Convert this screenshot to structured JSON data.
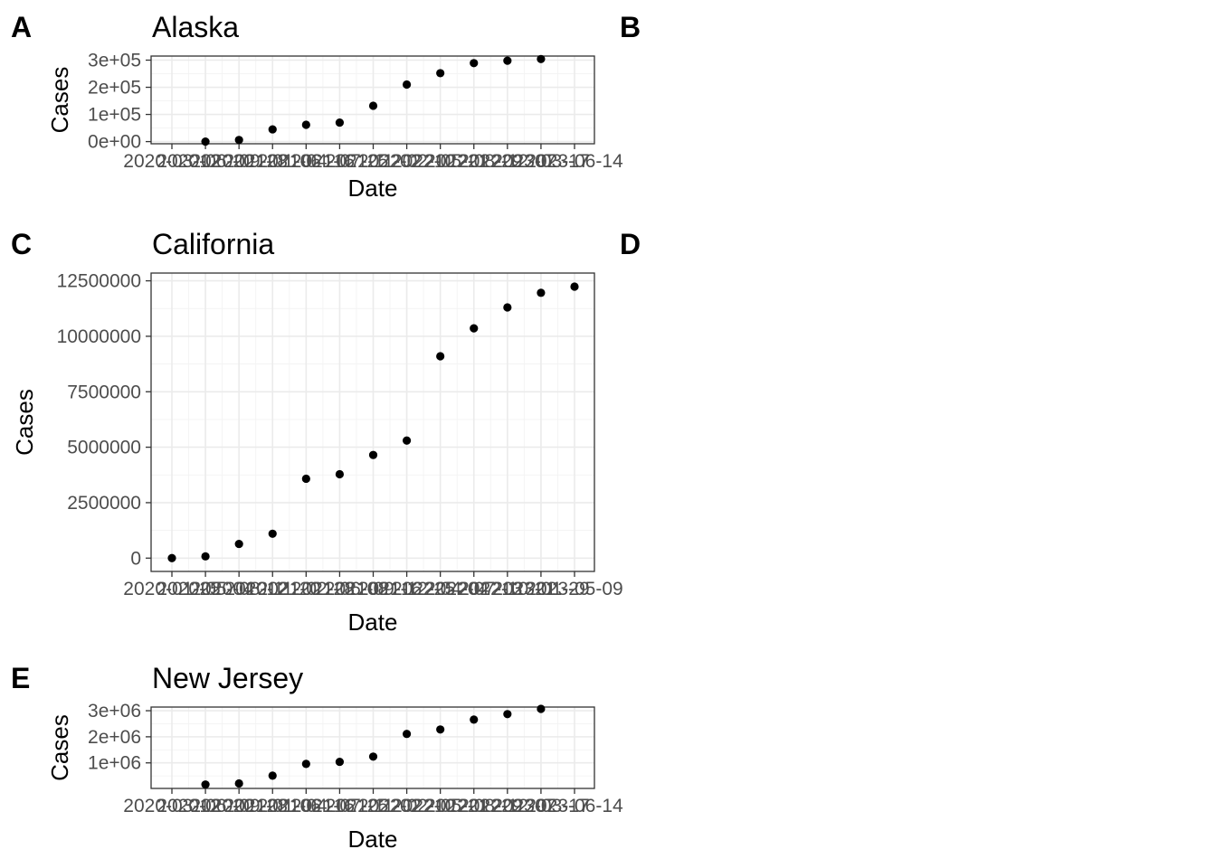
{
  "figure": {
    "tags": [
      "A",
      "B",
      "C",
      "D",
      "E"
    ]
  },
  "chart_data": [
    {
      "type": "scatter",
      "tag": "A",
      "title": "Alaska",
      "xlabel": "Date",
      "ylabel": "Cases",
      "grid": true,
      "x": [
        "2020-03-12",
        "2020-06-20",
        "2020-09-28",
        "2021-01-06",
        "2021-04-16",
        "2021-07-25",
        "2021-11-02",
        "2022-02-10",
        "2022-05-21",
        "2022-08-29",
        "2022-12-07",
        "2023-03-17",
        "2023-06-14"
      ],
      "y": [
        null,
        100,
        6000,
        45000,
        62000,
        70000,
        132000,
        210000,
        252000,
        289000,
        298000,
        304000,
        null
      ],
      "x_tick_labels": [
        "2020-03-12",
        "2020-06-20",
        "2020-09-28",
        "2021-01-06",
        "2021-04-16",
        "2021-07-25",
        "2021-11-02",
        "2022-02-10",
        "2022-05-21",
        "2022-08-29",
        "2022-12-07",
        "2023-03-17",
        "2023-06-14"
      ],
      "y_ticks": [
        0,
        100000,
        200000,
        300000
      ],
      "y_tick_labels": [
        "0e+00",
        "1e+05",
        "2e+05",
        "3e+05"
      ],
      "ylim": [
        -8000,
        315000
      ]
    },
    {
      "type": "scatter",
      "tag": "C",
      "title": "California",
      "xlabel": "Date",
      "ylabel": "Cases",
      "grid": true,
      "x": [
        "2020-01-25",
        "2020-05-04",
        "2020-08-12",
        "2020-11-20",
        "2021-02-28",
        "2021-06-08",
        "2021-09-16",
        "2021-12-25",
        "2022-04-04",
        "2022-07-13",
        "2022-10-21",
        "2023-01-29",
        "2023-05-09"
      ],
      "y": [
        0,
        80000,
        640000,
        1100000,
        3580000,
        3780000,
        4650000,
        5300000,
        9100000,
        10360000,
        11300000,
        11960000,
        12240000
      ],
      "x_tick_labels": [
        "2020-01-25",
        "2020-05-04",
        "2020-08-12",
        "2020-11-20",
        "2021-02-28",
        "2021-06-08",
        "2021-09-16",
        "2021-12-25",
        "2022-04-04",
        "2022-07-13",
        "2022-10-21",
        "2023-01-29",
        "2023-05-09"
      ],
      "y_ticks": [
        0,
        2500000,
        5000000,
        7500000,
        10000000,
        12500000
      ],
      "y_tick_labels": [
        "0",
        "2500000",
        "5000000",
        "7500000",
        "10000000",
        "12500000"
      ],
      "ylim": [
        -600000,
        12850000
      ]
    },
    {
      "type": "scatter",
      "tag": "E",
      "title": "New Jersey",
      "xlabel": "Date",
      "ylabel": "Cases",
      "grid": true,
      "x": [
        "2020-03-12",
        "2020-06-20",
        "2020-09-28",
        "2021-01-06",
        "2021-04-16",
        "2021-07-25",
        "2021-11-02",
        "2022-02-10",
        "2022-05-21",
        "2022-08-29",
        "2022-12-07",
        "2023-03-17",
        "2023-06-14"
      ],
      "y": [
        null,
        170000,
        210000,
        510000,
        960000,
        1040000,
        1240000,
        2110000,
        2280000,
        2660000,
        2870000,
        3070000,
        null
      ],
      "x_tick_labels": [
        "2020-03-12",
        "2020-06-20",
        "2020-09-28",
        "2021-01-06",
        "2021-04-16",
        "2021-07-25",
        "2021-11-02",
        "2022-02-10",
        "2022-05-21",
        "2022-08-29",
        "2022-12-07",
        "2023-03-17",
        "2023-06-14"
      ],
      "y_ticks": [
        1000000,
        2000000,
        3000000
      ],
      "y_tick_labels": [
        "1e+06",
        "2e+06",
        "3e+06"
      ],
      "ylim": [
        20000,
        3140000
      ]
    }
  ]
}
